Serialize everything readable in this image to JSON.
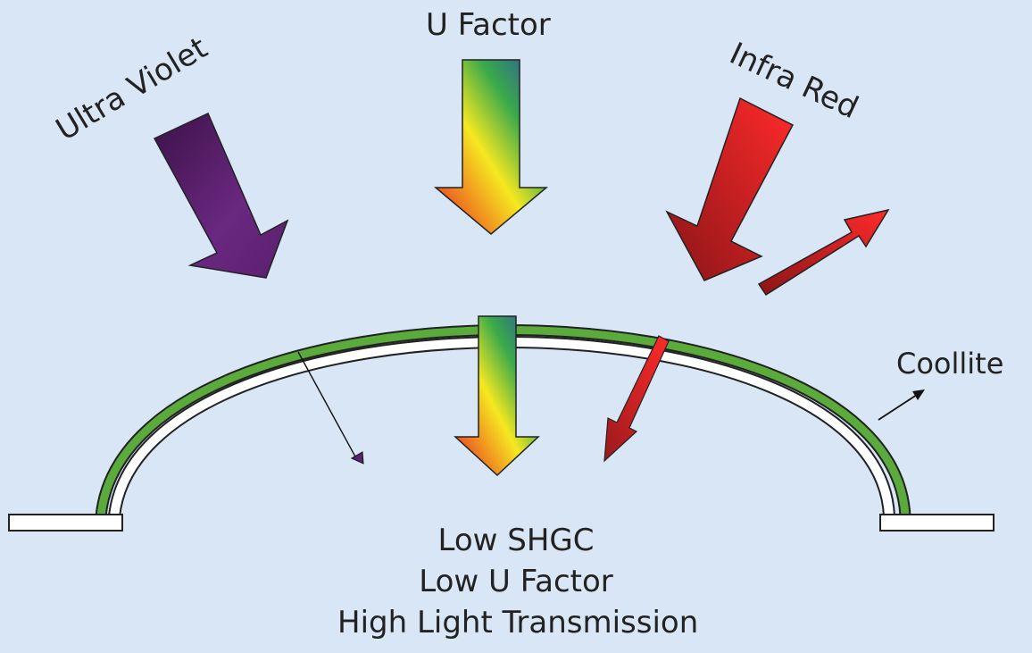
{
  "labels": {
    "ultra_violet": "Ultra Violet",
    "u_factor": "U Factor",
    "infra_red": "Infra Red",
    "coollite": "Coollite"
  },
  "results": [
    "Low SHGC",
    "Low U Factor",
    "High Light Transmission"
  ],
  "colors": {
    "background": "#d8e6f5",
    "coating_layer": "#5aaa3c",
    "glass_layer": "#ffffff",
    "ultra_violet_arrow": "#5c2070",
    "infra_red_arrow": "#e8202a",
    "u_factor_gradient": [
      "#2a4fa8",
      "#3aaa4a",
      "#f5e820",
      "#e82020"
    ]
  }
}
